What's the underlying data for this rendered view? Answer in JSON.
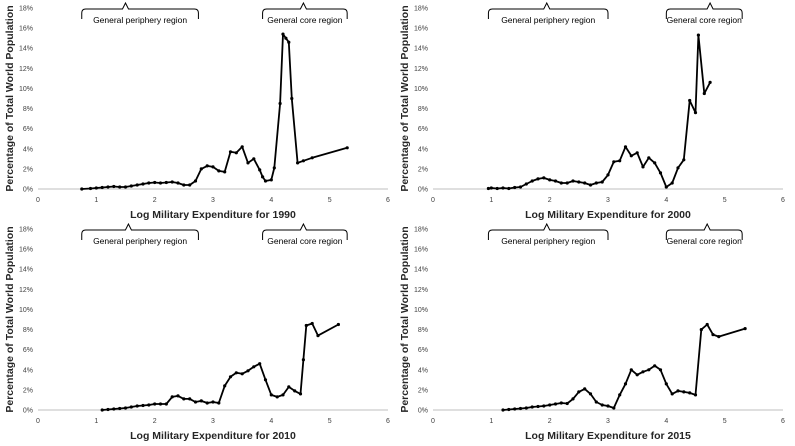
{
  "chart_data": [
    {
      "type": "line",
      "xlabel": "Log Military Expenditure for 1990",
      "ylabel": "Percentage of Total World Population",
      "xlim": [
        0,
        6
      ],
      "ylim": [
        0,
        18
      ],
      "x_ticks": [
        "0",
        "1",
        "2",
        "3",
        "4",
        "5",
        "6"
      ],
      "y_ticks": [
        "0%",
        "2%",
        "4%",
        "6%",
        "8%",
        "10%",
        "12%",
        "14%",
        "16%",
        "18%"
      ],
      "annotations": [
        {
          "label": "General periphery region",
          "x_range": [
            0.75,
            2.75
          ],
          "x_tip": 1.5
        },
        {
          "label": "General core region",
          "x_range": [
            3.85,
            5.3
          ],
          "x_tip": 4.55
        }
      ],
      "series": [
        {
          "x": [
            0.75,
            0.9,
            1.0,
            1.1,
            1.2,
            1.3,
            1.4,
            1.5,
            1.6,
            1.7,
            1.8,
            1.9,
            2.0,
            2.1,
            2.2,
            2.3,
            2.4,
            2.5,
            2.6,
            2.7,
            2.8,
            2.9,
            3.0,
            3.1,
            3.2,
            3.3,
            3.4,
            3.5,
            3.6,
            3.7,
            3.8,
            3.85,
            3.9,
            4.0,
            4.05,
            4.15,
            4.2,
            4.25,
            4.3,
            4.35,
            4.45,
            4.55,
            4.7,
            5.3
          ],
          "y": [
            0.0,
            0.05,
            0.1,
            0.15,
            0.2,
            0.25,
            0.2,
            0.2,
            0.3,
            0.4,
            0.5,
            0.6,
            0.65,
            0.6,
            0.65,
            0.7,
            0.6,
            0.4,
            0.4,
            0.8,
            2.0,
            2.3,
            2.2,
            1.8,
            1.7,
            3.7,
            3.6,
            4.2,
            2.6,
            3.0,
            1.9,
            1.2,
            0.8,
            0.9,
            2.1,
            8.5,
            15.4,
            15.0,
            14.6,
            9.0,
            2.6,
            2.8,
            3.1,
            4.1
          ]
        }
      ]
    },
    {
      "type": "line",
      "xlabel": "Log Military Expenditure for 2000",
      "ylabel": "Percentage of Total World Population",
      "xlim": [
        0,
        6
      ],
      "ylim": [
        0,
        18
      ],
      "x_ticks": [
        "0",
        "1",
        "2",
        "3",
        "4",
        "5",
        "6"
      ],
      "y_ticks": [
        "0%",
        "2%",
        "4%",
        "6%",
        "8%",
        "10%",
        "12%",
        "14%",
        "16%",
        "18%"
      ],
      "annotations": [
        {
          "label": "General periphery region",
          "x_range": [
            0.95,
            3.0
          ],
          "x_tip": 1.95
        },
        {
          "label": "General core region",
          "x_range": [
            4.0,
            5.3
          ],
          "x_tip": 4.75
        }
      ],
      "series": [
        {
          "x": [
            0.95,
            1.0,
            1.1,
            1.2,
            1.3,
            1.4,
            1.5,
            1.6,
            1.7,
            1.8,
            1.9,
            2.0,
            2.1,
            2.2,
            2.3,
            2.4,
            2.5,
            2.6,
            2.7,
            2.8,
            2.9,
            3.0,
            3.1,
            3.2,
            3.3,
            3.4,
            3.5,
            3.6,
            3.7,
            3.8,
            3.9,
            4.0,
            4.1,
            4.2,
            4.3,
            4.4,
            4.5,
            4.55,
            4.65,
            4.75
          ],
          "y": [
            0.05,
            0.1,
            0.05,
            0.1,
            0.05,
            0.15,
            0.2,
            0.5,
            0.8,
            1.0,
            1.1,
            0.9,
            0.8,
            0.6,
            0.6,
            0.8,
            0.7,
            0.6,
            0.4,
            0.6,
            0.7,
            1.4,
            2.7,
            2.8,
            4.2,
            3.3,
            3.6,
            2.2,
            3.1,
            2.6,
            1.6,
            0.2,
            0.6,
            2.1,
            2.9,
            8.8,
            7.6,
            15.3,
            9.5,
            10.6
          ]
        }
      ]
    },
    {
      "type": "line",
      "xlabel": "Log Military Expenditure for 2010",
      "ylabel": "Percentage of Total World Population",
      "xlim": [
        0,
        6
      ],
      "ylim": [
        0,
        18
      ],
      "x_ticks": [
        "0",
        "1",
        "2",
        "3",
        "4",
        "5",
        "6"
      ],
      "y_ticks": [
        "0%",
        "2%",
        "4%",
        "6%",
        "8%",
        "10%",
        "12%",
        "14%",
        "16%",
        "18%"
      ],
      "annotations": [
        {
          "label": "General periphery region",
          "x_range": [
            0.75,
            2.75
          ],
          "x_tip": 1.55
        },
        {
          "label": "General core region",
          "x_range": [
            3.85,
            5.3
          ],
          "x_tip": 4.55
        }
      ],
      "series": [
        {
          "x": [
            1.1,
            1.2,
            1.3,
            1.4,
            1.5,
            1.6,
            1.7,
            1.8,
            1.9,
            2.0,
            2.1,
            2.2,
            2.3,
            2.4,
            2.5,
            2.6,
            2.7,
            2.8,
            2.9,
            3.0,
            3.1,
            3.2,
            3.3,
            3.4,
            3.5,
            3.6,
            3.7,
            3.8,
            3.9,
            4.0,
            4.1,
            4.2,
            4.3,
            4.4,
            4.5,
            4.55,
            4.6,
            4.7,
            4.8,
            5.15
          ],
          "y": [
            0.0,
            0.05,
            0.1,
            0.15,
            0.2,
            0.3,
            0.4,
            0.45,
            0.5,
            0.6,
            0.6,
            0.6,
            1.3,
            1.4,
            1.1,
            1.1,
            0.8,
            0.9,
            0.7,
            0.8,
            0.7,
            2.4,
            3.3,
            3.7,
            3.6,
            3.9,
            4.3,
            4.6,
            3.0,
            1.5,
            1.3,
            1.5,
            2.3,
            1.9,
            1.6,
            5.0,
            8.4,
            8.6,
            7.4,
            8.5
          ]
        }
      ]
    },
    {
      "type": "line",
      "xlabel": "Log Military Expenditure for 2015",
      "ylabel": "Percentage of Total World Population",
      "xlim": [
        0,
        6
      ],
      "ylim": [
        0,
        18
      ],
      "x_ticks": [
        "0",
        "1",
        "2",
        "3",
        "4",
        "5",
        "6"
      ],
      "y_ticks": [
        "0%",
        "2%",
        "4%",
        "6%",
        "8%",
        "10%",
        "12%",
        "14%",
        "16%",
        "18%"
      ],
      "annotations": [
        {
          "label": "General periphery region",
          "x_range": [
            0.95,
            3.0
          ],
          "x_tip": 1.95
        },
        {
          "label": "General core region",
          "x_range": [
            4.0,
            5.3
          ],
          "x_tip": 4.7
        }
      ],
      "series": [
        {
          "x": [
            1.2,
            1.3,
            1.4,
            1.5,
            1.6,
            1.7,
            1.8,
            1.9,
            2.0,
            2.1,
            2.2,
            2.3,
            2.4,
            2.5,
            2.6,
            2.7,
            2.8,
            2.9,
            3.0,
            3.1,
            3.2,
            3.3,
            3.4,
            3.5,
            3.6,
            3.7,
            3.8,
            3.9,
            4.0,
            4.1,
            4.2,
            4.3,
            4.4,
            4.5,
            4.6,
            4.7,
            4.8,
            4.9,
            5.35
          ],
          "y": [
            0.0,
            0.05,
            0.1,
            0.15,
            0.2,
            0.3,
            0.35,
            0.4,
            0.5,
            0.6,
            0.7,
            0.65,
            1.1,
            1.8,
            2.1,
            1.6,
            0.8,
            0.5,
            0.4,
            0.2,
            1.5,
            2.6,
            4.0,
            3.5,
            3.8,
            4.0,
            4.4,
            4.0,
            2.6,
            1.6,
            1.9,
            1.8,
            1.7,
            1.5,
            8.0,
            8.5,
            7.5,
            7.3,
            8.1
          ]
        }
      ]
    }
  ]
}
